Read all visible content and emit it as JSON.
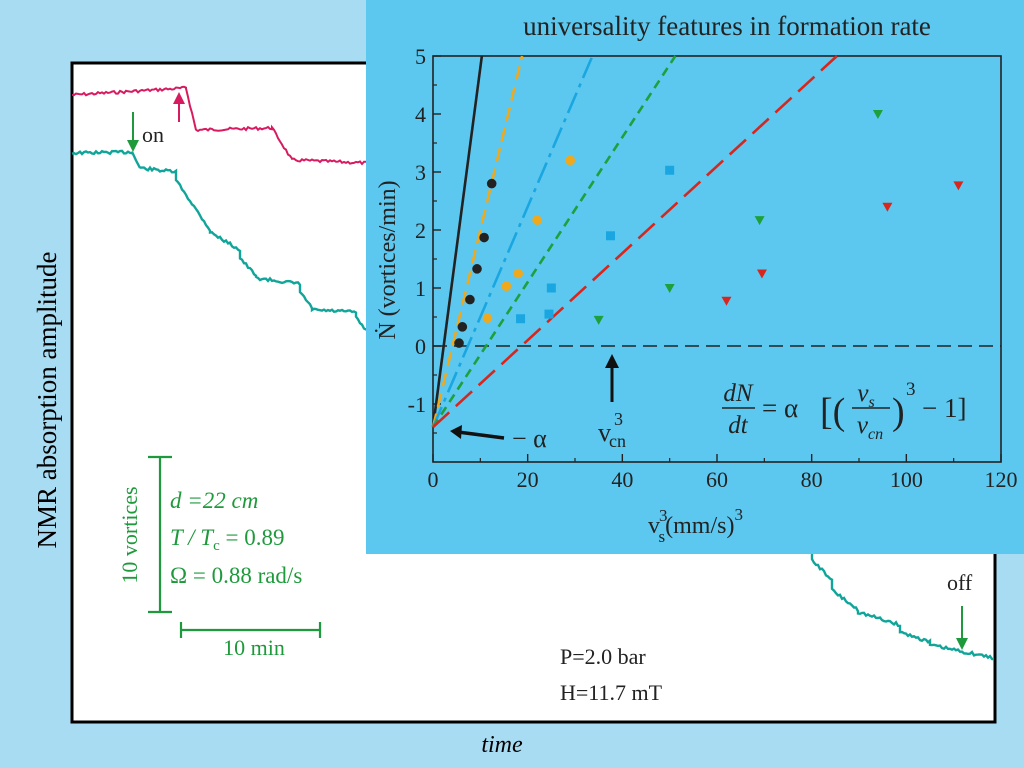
{
  "main_chart": {
    "ylabel": "NMR absorption amplitude",
    "xlabel": "time",
    "on_label": "on",
    "off_label": "off",
    "scale_vertical_label": "10 vortices",
    "scale_horizontal_label": "10 min",
    "params": {
      "d": "d =22 cm",
      "t_ratio": "T / T",
      "t_sub": "c",
      "t_value": " = 0.89",
      "omega": "Ω = 0.88  rad/s"
    },
    "pressure": "P=2.0 bar",
    "field": "H=11.7 mT",
    "colors": {
      "upper_trace": "#d81b60",
      "lower_trace": "#11a59a",
      "annotation": "#1e9a3c",
      "panel_bg": "#ffffff",
      "page_bg": "#a8dcf2"
    }
  },
  "inset": {
    "title": "universality features in formation rate",
    "ylabel": "Ṅ (vortices/min)",
    "xlabel": "v",
    "xlabel_sup": "3",
    "xlabel_sub": "s",
    "xlabel_units": "(mm/s)",
    "alpha_label": "− α",
    "vcn_label": "v",
    "vcn_sup": "3",
    "vcn_sub": "cn",
    "formula": {
      "lhs_num": "dN",
      "lhs_den": "dt",
      "eq": "= α",
      "num": "v",
      "num_sub": "s",
      "den": "v",
      "den_sub": "cn",
      "exp": "3",
      "tail": "− 1]"
    },
    "colors": {
      "bg": "#5cc8f0",
      "black": "#222222",
      "orange": "#f0a81c",
      "blue": "#1aa6e0",
      "green": "#1ea03c",
      "red": "#d8261c"
    }
  },
  "chart_data": {
    "type": "scatter",
    "title": "universality features in formation rate",
    "xlabel": "v_s^3 (mm/s)^3",
    "ylabel": "Ṅ (vortices/min)",
    "xlim": [
      0,
      120
    ],
    "ylim": [
      -2,
      5
    ],
    "x_ticks": [
      0,
      20,
      40,
      60,
      80,
      100,
      120
    ],
    "y_ticks": [
      -1,
      0,
      1,
      2,
      3,
      4,
      5
    ],
    "intercept": -1.4,
    "series": [
      {
        "color": "black",
        "marker": "circle",
        "slope": 0.62,
        "x": [
          5.5,
          6.2,
          7.8,
          9.3,
          10.8,
          12.4
        ],
        "y": [
          0.05,
          0.33,
          0.8,
          1.33,
          1.87,
          2.8
        ]
      },
      {
        "color": "orange",
        "marker": "circle",
        "slope": 0.34,
        "x": [
          11.5,
          15.5,
          18.0,
          22.0,
          29.0
        ],
        "y": [
          0.48,
          1.03,
          1.25,
          2.17,
          3.2
        ]
      },
      {
        "color": "blue",
        "marker": "square",
        "slope": 0.19,
        "x": [
          18.5,
          24.5,
          25.0,
          37.5,
          50.0
        ],
        "y": [
          0.47,
          0.55,
          1.0,
          1.9,
          3.03
        ]
      },
      {
        "color": "green",
        "marker": "triangle",
        "slope": 0.125,
        "x": [
          35.0,
          50.0,
          69.0,
          94.0
        ],
        "y": [
          0.45,
          1.0,
          2.17,
          4.0
        ]
      },
      {
        "color": "red",
        "marker": "triangle",
        "slope": 0.075,
        "x": [
          62.0,
          69.5,
          96.0,
          111.0
        ],
        "y": [
          0.78,
          1.25,
          2.4,
          2.77
        ]
      }
    ]
  }
}
